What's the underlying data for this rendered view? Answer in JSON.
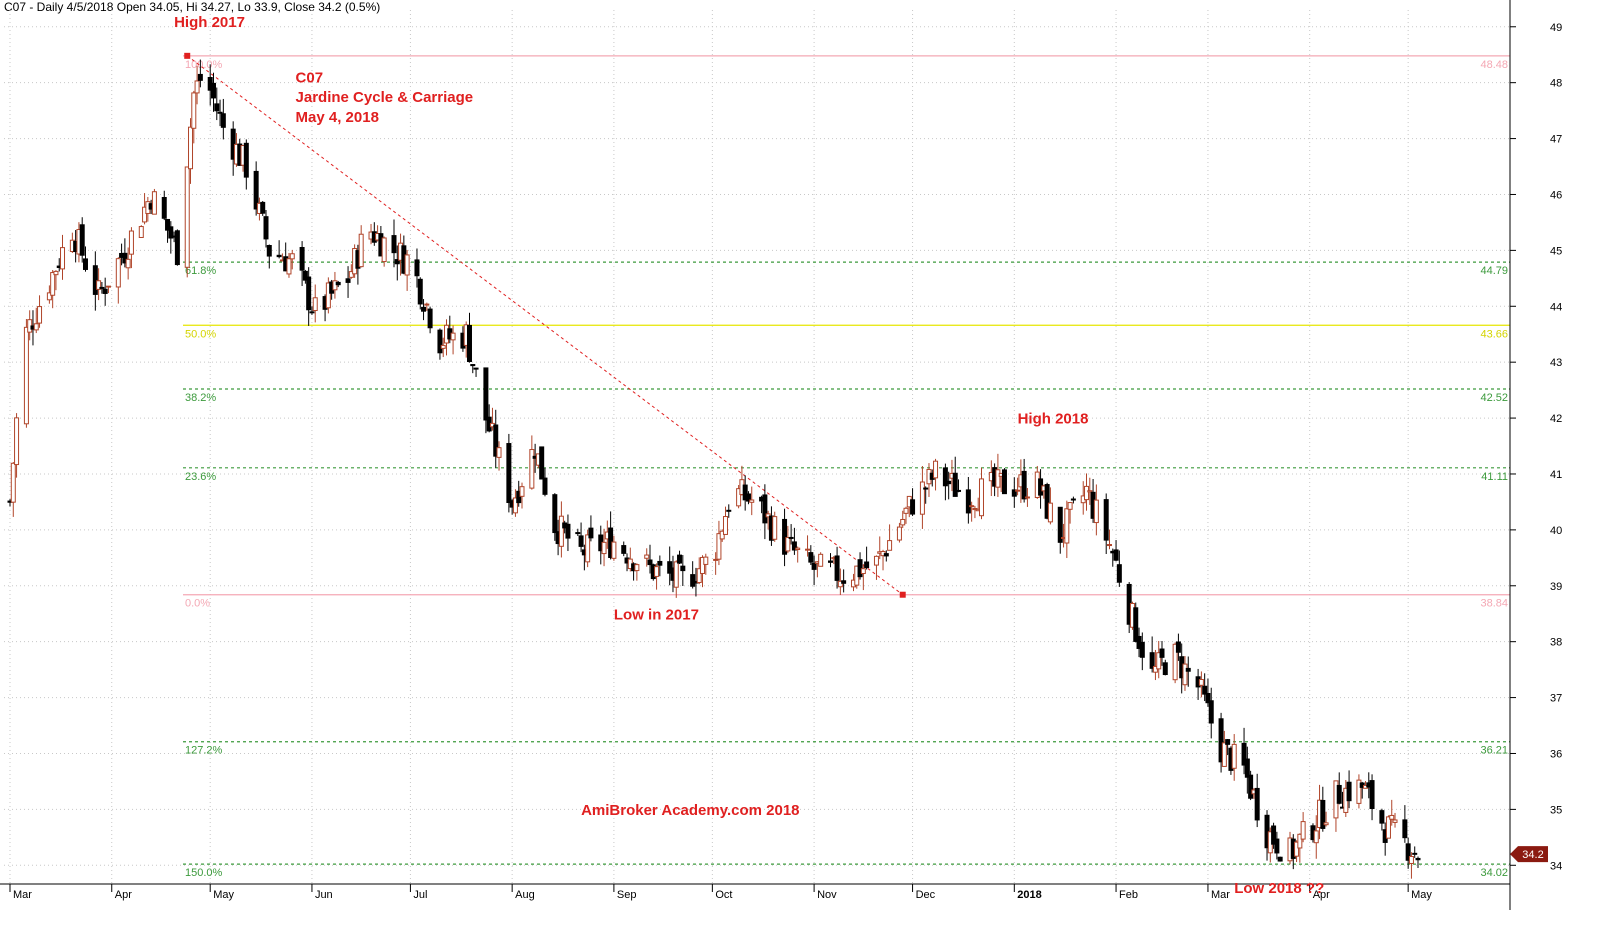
{
  "header": {
    "text": "C07 - Daily 4/5/2018 Open 34.05, Hi 34.27, Lo 33.9, Close 34.2 (0.5%)"
  },
  "colors": {
    "up": "#b0452a",
    "down": "#000000",
    "fib_green": "#3c9a3c",
    "fib_yellow": "#e6e600",
    "fib_pink": "#f4a8b4",
    "annotation": "#e02020",
    "grid": "#c8c8c8",
    "last_price_bg": "#8b1a10"
  },
  "chart_data": {
    "type": "candlestick",
    "ylim": [
      33.2,
      49.3
    ],
    "y_ticks": [
      34,
      35,
      36,
      37,
      38,
      39,
      40,
      41,
      42,
      43,
      44,
      45,
      46,
      47,
      48,
      49
    ],
    "x_start": "2017-03-01",
    "x_end": "2018-05-04",
    "months": [
      {
        "label": "Mar",
        "date": "2017-03-01",
        "strong": false
      },
      {
        "label": "Apr",
        "date": "2017-04-01",
        "strong": false
      },
      {
        "label": "May",
        "date": "2017-05-01",
        "strong": false
      },
      {
        "label": "Jun",
        "date": "2017-06-01",
        "strong": false
      },
      {
        "label": "Jul",
        "date": "2017-07-01",
        "strong": false
      },
      {
        "label": "Aug",
        "date": "2017-08-01",
        "strong": false
      },
      {
        "label": "Sep",
        "date": "2017-09-01",
        "strong": false
      },
      {
        "label": "Oct",
        "date": "2017-10-01",
        "strong": false
      },
      {
        "label": "Nov",
        "date": "2017-11-01",
        "strong": false
      },
      {
        "label": "Dec",
        "date": "2017-12-01",
        "strong": false
      },
      {
        "label": "2018",
        "date": "2018-01-01",
        "strong": true
      },
      {
        "label": "Feb",
        "date": "2018-02-01",
        "strong": false
      },
      {
        "label": "Mar",
        "date": "2018-03-01",
        "strong": false
      },
      {
        "label": "Apr",
        "date": "2018-04-01",
        "strong": false
      },
      {
        "label": "May",
        "date": "2018-05-01",
        "strong": false
      }
    ],
    "fib_levels": [
      {
        "label": "100.0%",
        "value": 48.48,
        "value_label": "48.48",
        "style": "pink_solid"
      },
      {
        "label": "61.8%",
        "value": 44.79,
        "value_label": "44.79",
        "style": "green_dash"
      },
      {
        "label": "50.0%",
        "value": 43.66,
        "value_label": "43.66",
        "style": "yellow_solid"
      },
      {
        "label": "38.2%",
        "value": 42.52,
        "value_label": "42.52",
        "style": "green_dash"
      },
      {
        "label": "23.6%",
        "value": 41.11,
        "value_label": "41.11",
        "style": "green_dash"
      },
      {
        "label": "0.0%",
        "value": 38.84,
        "value_label": "38.84",
        "style": "pink_solid"
      },
      {
        "label": "127.2%",
        "value": 36.21,
        "value_label": "36.21",
        "style": "green_dash"
      },
      {
        "label": "150.0%",
        "value": 34.02,
        "value_label": "34.02",
        "style": "green_dash"
      }
    ],
    "trendline": {
      "start": {
        "date": "2017-04-24",
        "value": 48.48
      },
      "end": {
        "date": "2017-11-28",
        "value": 38.84
      }
    },
    "last_price": {
      "value": 34.2,
      "label": "34.2"
    },
    "annotations": [
      {
        "text": "High 2017",
        "date": "2017-04-20",
        "value": 49.0
      },
      {
        "text": "C07",
        "date": "2017-05-27",
        "value": 48.0
      },
      {
        "text": "Jardine Cycle & Carriage",
        "date": "2017-05-27",
        "value": 47.65
      },
      {
        "text": "May 4, 2018",
        "date": "2017-05-27",
        "value": 47.3
      },
      {
        "text": "High 2018",
        "date": "2018-01-02",
        "value": 41.9
      },
      {
        "text": "Low in 2017",
        "date": "2017-09-01",
        "value": 38.4
      },
      {
        "text": "AmiBroker Academy.com  2018",
        "date": "2017-08-22",
        "value": 34.9
      },
      {
        "text": "Low 2018 ??",
        "date": "2018-03-09",
        "value": 33.5
      }
    ],
    "anchors": [
      {
        "month": "2017-03-01",
        "close": 40.5
      },
      {
        "month": "2017-03-05",
        "close": 43.4
      },
      {
        "month": "2017-03-12",
        "close": 44.3
      },
      {
        "month": "2017-03-20",
        "close": 45.4
      },
      {
        "month": "2017-03-28",
        "close": 44.2
      },
      {
        "month": "2017-04-05",
        "close": 45.0
      },
      {
        "month": "2017-04-13",
        "close": 46.0
      },
      {
        "month": "2017-04-21",
        "close": 45.0
      },
      {
        "month": "2017-04-26",
        "close": 47.8
      },
      {
        "month": "2017-04-29",
        "close": 48.2
      },
      {
        "month": "2017-05-05",
        "close": 47.2
      },
      {
        "month": "2017-05-12",
        "close": 46.5
      },
      {
        "month": "2017-05-19",
        "close": 45.0
      },
      {
        "month": "2017-05-26",
        "close": 44.8
      },
      {
        "month": "2017-06-02",
        "close": 43.9
      },
      {
        "month": "2017-06-12",
        "close": 44.5
      },
      {
        "month": "2017-06-18",
        "close": 45.4
      },
      {
        "month": "2017-06-26",
        "close": 45.0
      },
      {
        "month": "2017-07-01",
        "close": 44.8
      },
      {
        "month": "2017-07-10",
        "close": 43.4
      },
      {
        "month": "2017-07-18",
        "close": 43.5
      },
      {
        "month": "2017-07-24",
        "close": 42.0
      },
      {
        "month": "2017-08-01",
        "close": 40.5
      },
      {
        "month": "2017-08-08",
        "close": 41.5
      },
      {
        "month": "2017-08-14",
        "close": 40.1
      },
      {
        "month": "2017-08-22",
        "close": 39.6
      },
      {
        "month": "2017-09-01",
        "close": 39.8
      },
      {
        "month": "2017-09-12",
        "close": 39.3
      },
      {
        "month": "2017-09-22",
        "close": 39.1
      },
      {
        "month": "2017-10-01",
        "close": 39.5
      },
      {
        "month": "2017-10-07",
        "close": 40.7
      },
      {
        "month": "2017-10-14",
        "close": 40.5
      },
      {
        "month": "2017-10-24",
        "close": 39.7
      },
      {
        "month": "2017-11-01",
        "close": 39.3
      },
      {
        "month": "2017-11-10",
        "close": 39.2
      },
      {
        "month": "2017-11-20",
        "close": 39.4
      },
      {
        "month": "2017-12-01",
        "close": 40.5
      },
      {
        "month": "2017-12-08",
        "close": 41.0
      },
      {
        "month": "2017-12-18",
        "close": 40.6
      },
      {
        "month": "2017-12-28",
        "close": 40.8
      },
      {
        "month": "2018-01-08",
        "close": 40.8
      },
      {
        "month": "2018-01-15",
        "close": 39.9
      },
      {
        "month": "2018-01-23",
        "close": 40.7
      },
      {
        "month": "2018-01-31",
        "close": 39.6
      },
      {
        "month": "2018-02-06",
        "close": 38.4
      },
      {
        "month": "2018-02-12",
        "close": 37.4
      },
      {
        "month": "2018-02-18",
        "close": 37.8
      },
      {
        "month": "2018-02-26",
        "close": 37.2
      },
      {
        "month": "2018-03-05",
        "close": 36.1
      },
      {
        "month": "2018-03-12",
        "close": 35.7
      },
      {
        "month": "2018-03-19",
        "close": 34.6
      },
      {
        "month": "2018-03-26",
        "close": 34.2
      },
      {
        "month": "2018-04-03",
        "close": 34.8
      },
      {
        "month": "2018-04-10",
        "close": 35.3
      },
      {
        "month": "2018-04-17",
        "close": 35.4
      },
      {
        "month": "2018-04-24",
        "close": 34.7
      },
      {
        "month": "2018-05-04",
        "close": 34.2
      }
    ]
  }
}
